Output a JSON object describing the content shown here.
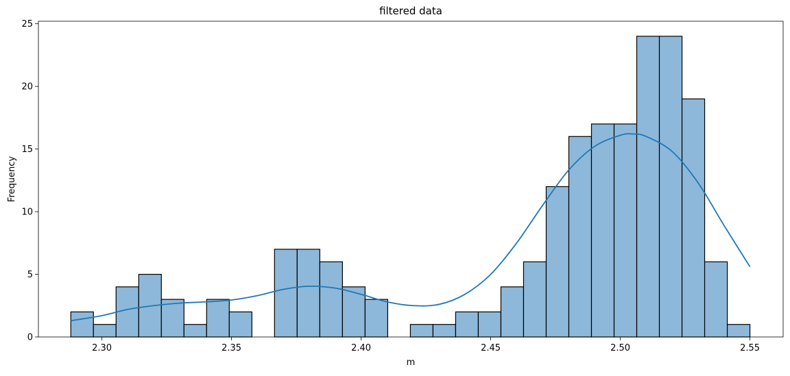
{
  "chart_data": {
    "type": "bar",
    "title": "filtered data",
    "xlabel": "m",
    "ylabel": "Frequency",
    "xlim": [
      2.2755,
      2.5628
    ],
    "ylim": [
      0,
      25.2
    ],
    "xticks": [
      "2.30",
      "2.35",
      "2.40",
      "2.45",
      "2.50",
      "2.55"
    ],
    "yticks": [
      "0",
      "5",
      "10",
      "15",
      "20",
      "25"
    ],
    "grid": false,
    "legend": "none",
    "bin_start": 2.288,
    "bin_width": 0.008733,
    "counts": [
      2,
      1,
      4,
      5,
      3,
      1,
      3,
      2,
      0,
      7,
      7,
      6,
      4,
      3,
      0,
      1,
      1,
      2,
      2,
      4,
      6,
      12,
      16,
      17,
      17,
      24,
      24,
      19,
      6,
      1
    ],
    "kde": {
      "x": [
        2.288,
        2.3,
        2.31,
        2.32,
        2.33,
        2.34,
        2.35,
        2.36,
        2.37,
        2.38,
        2.39,
        2.4,
        2.41,
        2.42,
        2.43,
        2.44,
        2.45,
        2.46,
        2.47,
        2.48,
        2.49,
        2.5,
        2.505,
        2.51,
        2.52,
        2.53,
        2.54,
        2.55
      ],
      "y": [
        1.3,
        1.7,
        2.2,
        2.5,
        2.7,
        2.8,
        2.95,
        3.3,
        3.8,
        4.05,
        3.9,
        3.4,
        2.8,
        2.5,
        2.6,
        3.4,
        5.0,
        7.5,
        10.5,
        13.3,
        15.2,
        16.1,
        16.2,
        16.0,
        14.8,
        12.3,
        8.9,
        5.6
      ]
    },
    "colors": {
      "bar_fill": "#8db8da",
      "bar_edge": "#000000",
      "kde_line": "#1f77b4"
    }
  }
}
